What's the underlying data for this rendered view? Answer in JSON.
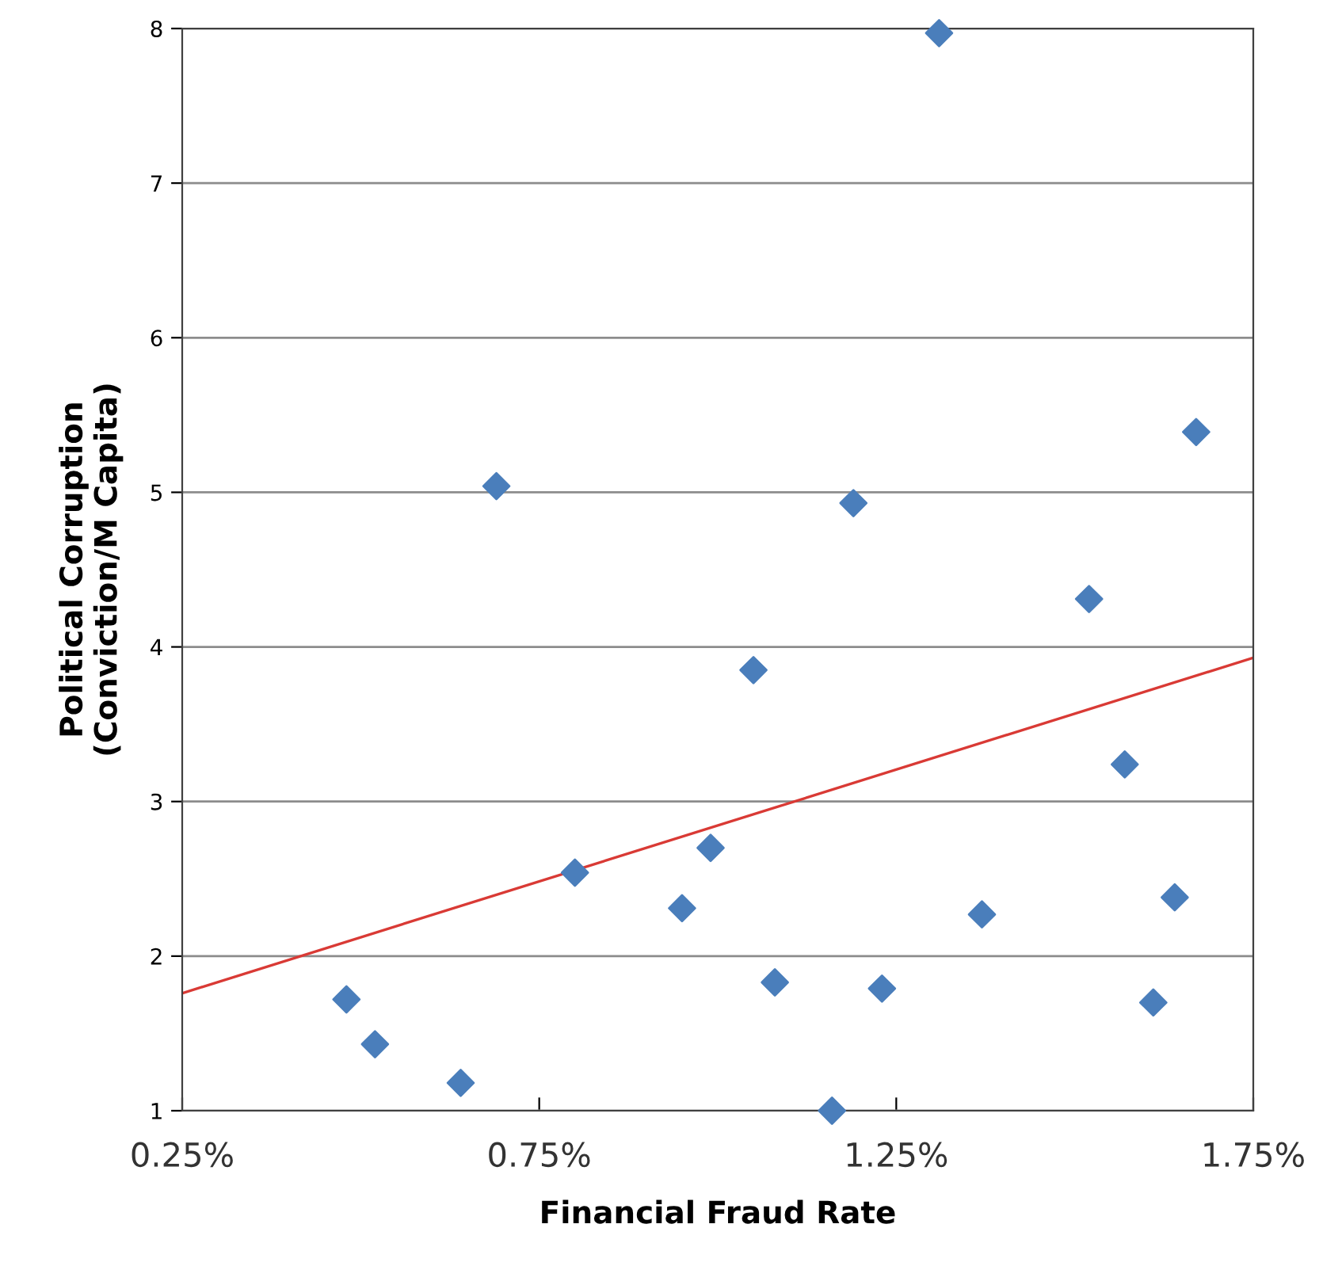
{
  "chart_data": {
    "type": "scatter",
    "xlabel": "Financial Fraud Rate",
    "ylabel": "Political Corruption\n(Conviction/M Capita)",
    "xlim": [
      0.25,
      1.75
    ],
    "ylim": [
      1,
      8
    ],
    "xticks": [
      {
        "value": 0.25,
        "label": "0.25%"
      },
      {
        "value": 0.75,
        "label": "0.75%"
      },
      {
        "value": 1.25,
        "label": "1.25%"
      },
      {
        "value": 1.75,
        "label": "1.75%"
      }
    ],
    "yticks": [
      1,
      2,
      3,
      4,
      5,
      6,
      7,
      8
    ],
    "grid": "y",
    "marker": "diamond",
    "series": [
      {
        "color": "#4a7ebb",
        "x": [
          0.48,
          0.52,
          0.64,
          0.69,
          0.8,
          0.95,
          0.99,
          1.05,
          1.08,
          1.16,
          1.19,
          1.23,
          1.31,
          1.37,
          1.52,
          1.57,
          1.61,
          1.64,
          1.67
        ],
        "values": [
          1.72,
          1.43,
          1.18,
          5.04,
          2.54,
          2.31,
          2.7,
          3.85,
          1.83,
          1.0,
          4.93,
          1.79,
          7.97,
          2.27,
          4.31,
          3.24,
          1.7,
          2.38,
          5.39
        ]
      },
      {
        "type": "line",
        "color": "#d93a35",
        "marker": "none",
        "x": [
          0.25,
          1.75
        ],
        "values": [
          1.76,
          3.93
        ]
      }
    ]
  }
}
